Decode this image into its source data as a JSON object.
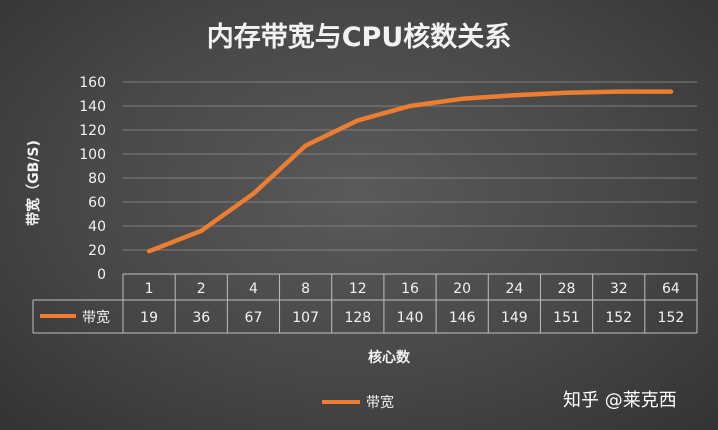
{
  "chart_data": {
    "type": "line",
    "title": "内存带宽与CPU核数关系",
    "xlabel": "核心数",
    "ylabel": "带宽（GB/S)",
    "categories": [
      "1",
      "2",
      "4",
      "8",
      "12",
      "16",
      "20",
      "24",
      "28",
      "32",
      "64"
    ],
    "series": [
      {
        "name": "带宽",
        "values": [
          19,
          36,
          67,
          107,
          128,
          140,
          146,
          149,
          151,
          152,
          152
        ],
        "color": "#ED7D31"
      }
    ],
    "ylim": [
      0,
      160
    ],
    "yticks": [
      0,
      20,
      40,
      60,
      80,
      100,
      120,
      140,
      160
    ],
    "grid": true,
    "legend_position": "bottom",
    "data_table": true
  },
  "watermark": "知乎 @莱克西"
}
